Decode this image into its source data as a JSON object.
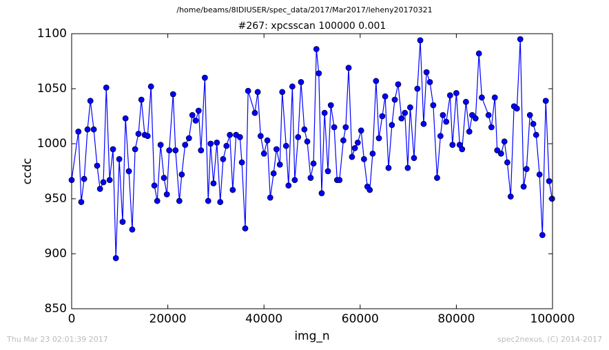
{
  "chart_data": {
    "type": "line",
    "suptitle": "/home/beams/8IDIUSER/spec_data/2017/Mar2017/leheny20170321",
    "title": "#267: xpcsscan 100000 0.001",
    "xlabel": "img_n",
    "ylabel": "ccdc",
    "footer_left": "Thu Mar 23 02:01:39 2017",
    "footer_right": "spec2nexus, (C) 2014-2017",
    "xlim": [
      0,
      100000
    ],
    "xticks": [
      0,
      20000,
      40000,
      60000,
      80000,
      100000
    ],
    "ylim": [
      850,
      1100
    ],
    "yticks": [
      850,
      900,
      950,
      1000,
      1050,
      1100
    ],
    "grid": false,
    "x": [
      0,
      1400,
      2000,
      2600,
      3300,
      3900,
      4600,
      5300,
      5900,
      6600,
      7200,
      7900,
      8600,
      9200,
      9900,
      10600,
      11200,
      11900,
      12600,
      13200,
      13900,
      14500,
      15200,
      15800,
      16500,
      17200,
      17800,
      18500,
      19200,
      19800,
      20300,
      21100,
      21600,
      22400,
      22900,
      23600,
      24400,
      25100,
      25800,
      26400,
      26900,
      27700,
      28400,
      28900,
      29500,
      30200,
      30900,
      31500,
      32200,
      32900,
      33500,
      34200,
      35000,
      35400,
      36100,
      36700,
      38100,
      38700,
      39300,
      40000,
      40700,
      41300,
      42000,
      42600,
      43300,
      43800,
      44600,
      45100,
      45900,
      46400,
      47100,
      47700,
      48400,
      49000,
      49700,
      50300,
      50900,
      51400,
      52000,
      52600,
      53300,
      53900,
      54600,
      55200,
      55700,
      56500,
      57000,
      57600,
      58300,
      58900,
      59500,
      60200,
      60800,
      61500,
      62000,
      62600,
      63300,
      63900,
      64600,
      65200,
      65900,
      66600,
      67200,
      67900,
      68600,
      69300,
      69900,
      70400,
      71200,
      71900,
      72500,
      73200,
      73800,
      74500,
      75200,
      76000,
      76700,
      77200,
      77900,
      78700,
      79200,
      80000,
      80700,
      81200,
      82000,
      82700,
      83300,
      84000,
      84700,
      85300,
      86700,
      87300,
      88000,
      88500,
      89300,
      90000,
      90600,
      91300,
      92000,
      92600,
      93300,
      94000,
      94600,
      95300,
      96000,
      96600,
      97300,
      97900,
      98600,
      99300,
      99900
    ],
    "series": [
      {
        "name": "ccdc",
        "color": "#0000ff",
        "marker_edge": "#000033",
        "values": [
          967,
          1011,
          947,
          968,
          1013,
          1039,
          1013,
          980,
          959,
          965,
          1051,
          967,
          995,
          896,
          986,
          929,
          1023,
          975,
          922,
          995,
          1009,
          1040,
          1008,
          1007,
          1052,
          962,
          948,
          999,
          969,
          954,
          994,
          1045,
          994,
          948,
          972,
          999,
          1005,
          1026,
          1021,
          1030,
          994,
          1060,
          948,
          1000,
          964,
          1001,
          947,
          986,
          998,
          1008,
          958,
          1008,
          1006,
          983,
          923,
          1048,
          1028,
          1047,
          1007,
          991,
          1003,
          951,
          973,
          995,
          981,
          1047,
          998,
          962,
          1052,
          967,
          1006,
          1056,
          1013,
          1002,
          969,
          982,
          1086,
          1064,
          955,
          1028,
          975,
          1035,
          1015,
          967,
          967,
          1003,
          1015,
          1069,
          988,
          996,
          1001,
          1012,
          986,
          961,
          958,
          991,
          1057,
          1005,
          1025,
          1043,
          978,
          1017,
          1040,
          1054,
          1023,
          1028,
          978,
          1033,
          987,
          1050,
          1094,
          1018,
          1065,
          1056,
          1035,
          969,
          1007,
          1026,
          1020,
          1044,
          999,
          1046,
          999,
          995,
          1038,
          1011,
          1026,
          1023,
          1082,
          1042,
          1026,
          1015,
          1042,
          994,
          991,
          1002,
          983,
          952,
          1034,
          1032,
          1095,
          961,
          977,
          1026,
          1018,
          1008,
          972,
          917,
          1039,
          966,
          950
        ]
      }
    ]
  }
}
